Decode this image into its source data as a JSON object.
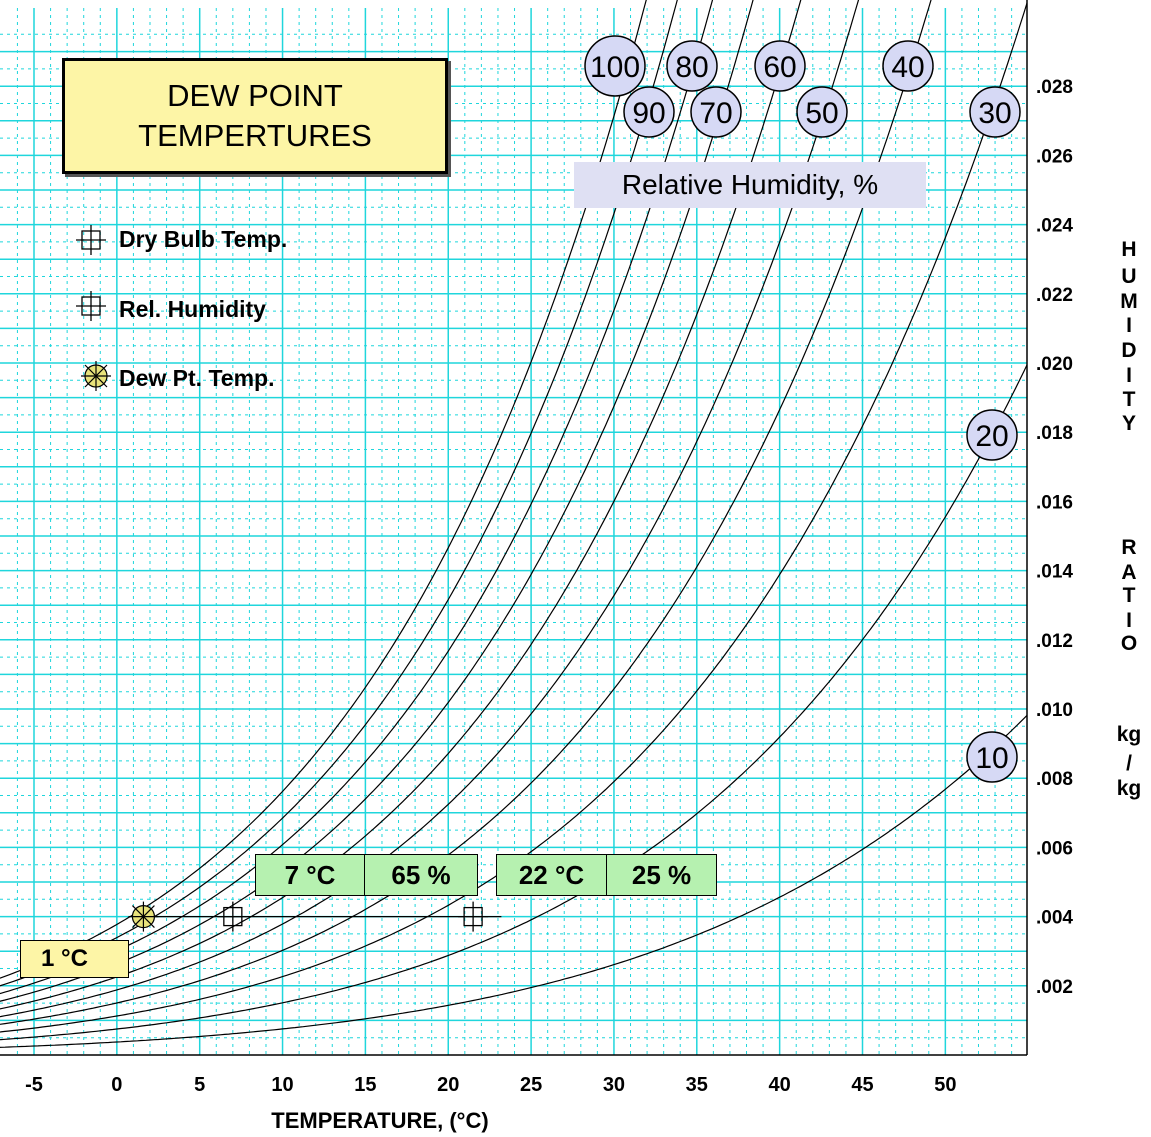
{
  "title_lines": [
    "DEW POINT",
    "TEMPERTURES"
  ],
  "legend": {
    "dry_bulb": "Dry Bulb Temp.",
    "rel_humidity": "Rel. Humidity",
    "dew_point": "Dew Pt. Temp."
  },
  "rh_caption": "Relative Humidity, %",
  "examples": [
    {
      "temp": "7 °C",
      "rh": "65 %"
    },
    {
      "temp": "22 °C",
      "rh": "25 %"
    }
  ],
  "dew_point_label": "1 °C",
  "y_axis_letters": [
    "H",
    "U",
    "M",
    "I",
    "D",
    "I",
    "T",
    "Y",
    "",
    "R",
    "A",
    "T",
    "I",
    "O",
    "",
    "kg",
    "/",
    "kg"
  ],
  "colors": {
    "grid": "#1fd6dc",
    "curve": "#000000",
    "bubble": "#d6d9f5",
    "title_bg": "#fdf5a6",
    "value_bg": "#b6f1b0"
  },
  "chart_data": {
    "type": "line",
    "title": "DEW POINT TEMPERTURES",
    "xlabel": "TEMPERATURE, (°C)",
    "ylabel": "HUMIDITY RATIO kg/kg",
    "xlim": [
      -6,
      54.5
    ],
    "ylim": [
      0,
      0.03
    ],
    "x_ticks": [
      -5,
      0,
      5,
      10,
      15,
      20,
      25,
      30,
      35,
      40,
      45,
      50
    ],
    "x_tick_labels": [
      "-5",
      "0",
      "5",
      "10",
      "15",
      "20",
      "25",
      "30",
      "35",
      "40",
      "45",
      "50"
    ],
    "y_ticks": [
      0.002,
      0.004,
      0.006,
      0.008,
      0.01,
      0.012,
      0.014,
      0.016,
      0.018,
      0.02,
      0.022,
      0.024,
      0.026,
      0.028
    ],
    "y_tick_labels": [
      ".002",
      ".004",
      ".006",
      ".008",
      ".010",
      ".012",
      ".014",
      ".016",
      ".018",
      ".020",
      ".022",
      ".024",
      ".026",
      ".028"
    ],
    "grid": true,
    "rh_curves": [
      100,
      90,
      80,
      70,
      60,
      50,
      40,
      30,
      20,
      10
    ],
    "rh_labels": [
      {
        "label": "100",
        "rh": 100
      },
      {
        "label": "90",
        "rh": 90
      },
      {
        "label": "80",
        "rh": 80
      },
      {
        "label": "70",
        "rh": 70
      },
      {
        "label": "60",
        "rh": 60
      },
      {
        "label": "50",
        "rh": 50
      },
      {
        "label": "40",
        "rh": 40
      },
      {
        "label": "30",
        "rh": 30
      },
      {
        "label": "20",
        "rh": 20
      },
      {
        "label": "10",
        "rh": 10
      }
    ],
    "constant_w_line": {
      "w": 0.004,
      "x_from": 1,
      "x_to": 22
    },
    "points": [
      {
        "name": "Dew Pt. Temp.",
        "x": 1,
        "y": 0.004,
        "marker": "dew"
      },
      {
        "name": "Dry Bulb Temp.",
        "x": 7,
        "y": 0.004,
        "marker": "cross"
      },
      {
        "name": "Dry Bulb Temp.",
        "x": 21.5,
        "y": 0.004,
        "marker": "cross"
      }
    ]
  }
}
